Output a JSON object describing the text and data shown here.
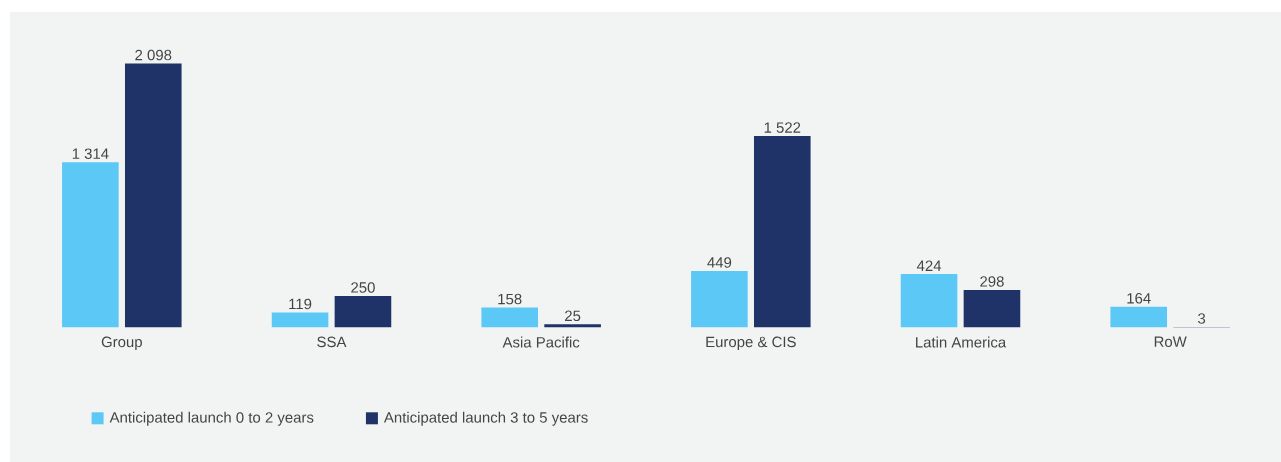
{
  "chart_data": {
    "type": "bar",
    "categories": [
      "Group",
      "SSA",
      "Asia Pacific",
      "Europe & CIS",
      "Latin America",
      "RoW"
    ],
    "series": [
      {
        "name": "Anticipated launch 0 to 2 years",
        "color": "#5bc8f5",
        "values": [
          1314,
          119,
          158,
          449,
          424,
          164
        ],
        "value_labels": [
          "1 314",
          "119",
          "158",
          "449",
          "424",
          "164"
        ]
      },
      {
        "name": "Anticipated launch 3 to 5 years",
        "color": "#1f3369",
        "values": [
          2098,
          250,
          25,
          1522,
          298,
          3
        ],
        "value_labels": [
          "2 098",
          "250",
          "25",
          "1 522",
          "298",
          "3"
        ]
      }
    ],
    "legend": "bottom left"
  }
}
